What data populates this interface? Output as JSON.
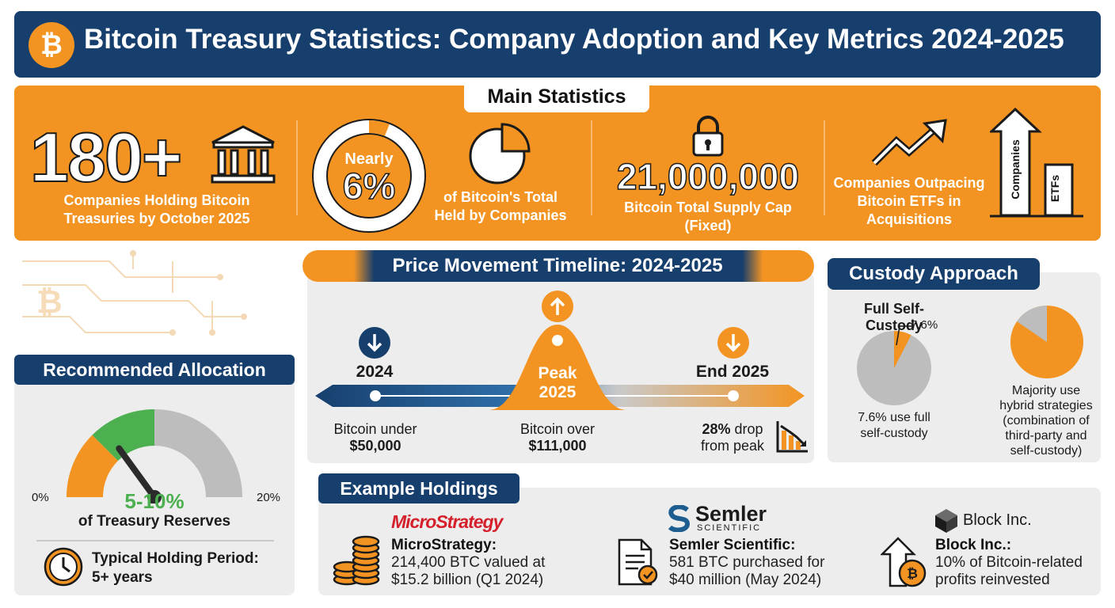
{
  "header": {
    "logo_symbol": "₿",
    "title": "Bitcoin Treasury Statistics: Company Adoption and Key Metrics 2024-2025"
  },
  "main_stats": {
    "section_label": "Main Statistics",
    "companies": {
      "value": "180+",
      "label_line1": "Companies Holding Bitcoin",
      "label_line2": "Treasuries by October 2025",
      "icon": "bank-building-icon"
    },
    "share": {
      "ring_top": "Nearly",
      "ring_value": "6%",
      "share_fraction": 0.06,
      "label_line1": "of Bitcoin's Total",
      "label_line2": "Held by Companies",
      "icon": "pie-chart-icon"
    },
    "supply": {
      "value": "21,000,000",
      "label_line1": "Bitcoin Total Supply Cap",
      "label_line2": "(Fixed)",
      "icon": "lock-icon"
    },
    "outpacing": {
      "label_line1": "Companies Outpacing",
      "label_line2": "Bitcoin ETFs in",
      "label_line3": "Acquisitions",
      "bar_label_companies": "Companies",
      "bar_label_etfs": "ETFs",
      "icon": "trend-up-arrow-icon"
    }
  },
  "timeline": {
    "title": "Price Movement Timeline: 2024-2025",
    "points": [
      {
        "label": "2024",
        "desc_line1": "Bitcoin under",
        "desc_line2": "$50,000",
        "direction": "down"
      },
      {
        "label_line1": "Peak",
        "label_line2": "2025",
        "desc_line1": "Bitcoin over",
        "desc_line2": "$111,000",
        "direction": "up"
      },
      {
        "label": "End 2025",
        "desc_bold": "28%",
        "desc_line1": " drop",
        "desc_line2": "from peak",
        "direction": "down"
      }
    ]
  },
  "custody": {
    "title": "Custody Approach",
    "self": {
      "heading": "Full Self-Custody",
      "pie_label": "7.6%",
      "fraction": 0.076,
      "desc_line1": "7.6% use full",
      "desc_line2": "self-custody"
    },
    "hybrid": {
      "desc_line1": "Majority use",
      "desc_line2": "hybrid strategies",
      "desc_line3": "(combination of",
      "desc_line4": "third-party and",
      "desc_line5": "self-custody)"
    },
    "colors": {
      "orange": "#f39422",
      "grey": "#bdbdbd"
    }
  },
  "allocation": {
    "title": "Recommended Allocation",
    "gauge_min": "0%",
    "gauge_max": "20%",
    "value": "5-10%",
    "range": [
      5,
      10
    ],
    "scale": [
      0,
      20
    ],
    "value_caption": "of Treasury Reserves",
    "holding_line1": "Typical Holding Period:",
    "holding_line2": "5+ years",
    "colors": {
      "orange": "#f39422",
      "green": "#4caf50",
      "grey": "#bdbdbd"
    }
  },
  "examples": {
    "title": "Example Holdings",
    "items": [
      {
        "logo": "MicroStrategy",
        "name": "MicroStrategy:",
        "desc_line1": "214,400 BTC valued at",
        "desc_line2": "$15.2 billion (Q1 2024)",
        "icon": "coin-stack-icon"
      },
      {
        "logo_main": "Semler",
        "logo_sub": "SCIENTIFIC",
        "name": "Semler Scientific:",
        "desc_line1": "581 BTC purchased for",
        "desc_line2": "$40 million (May 2024)",
        "icon": "document-check-icon"
      },
      {
        "logo": "Block Inc.",
        "name": "Block Inc.:",
        "desc_line1": "10% of Bitcoin-related",
        "desc_line2": "profits reinvested",
        "icon": "reinvest-arrow-coin-icon"
      }
    ]
  }
}
